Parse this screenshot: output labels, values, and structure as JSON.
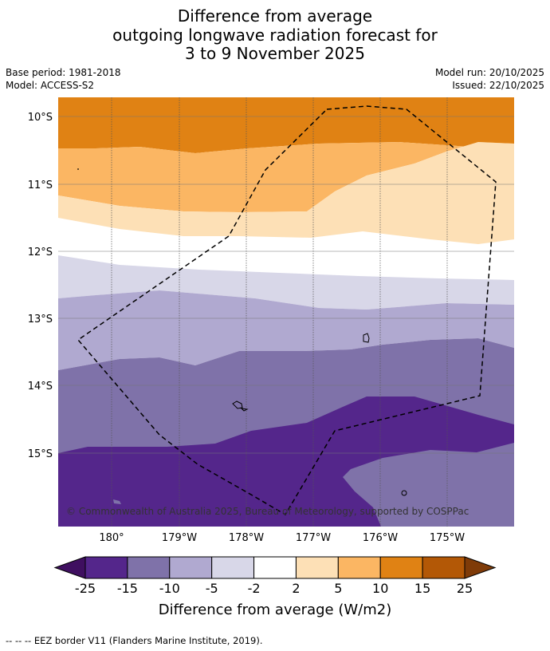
{
  "title": {
    "line1": "Difference from average",
    "line2": "outgoing longwave radiation forecast for",
    "line3": "3 to 9 November 2025"
  },
  "meta": {
    "base_period": "Base period: 1981-2018",
    "model": "Model: ACCESS-S2",
    "model_run": "Model run: 20/10/2025",
    "issued": "Issued: 22/10/2025"
  },
  "map": {
    "lat_labels": [
      "10°S",
      "11°S",
      "12°S",
      "13°S",
      "14°S",
      "15°S"
    ],
    "lon_labels": [
      "180°",
      "179°W",
      "178°W",
      "177°W",
      "176°W",
      "175°W"
    ],
    "copyright": "© Commonwealth of Australia 2025, Bureau of Meteorology, supported by COSPPac"
  },
  "colorbar": {
    "ticks": [
      "-25",
      "-15",
      "-10",
      "-5",
      "-2",
      "2",
      "5",
      "10",
      "15",
      "25"
    ],
    "label": "Difference from average (W/m2)",
    "colors": [
      "#3f0f60",
      "#54268b",
      "#7f72a9",
      "#b0a9d0",
      "#d8d7e8",
      "#ffffff",
      "#fde0b6",
      "#fbb663",
      "#e08214",
      "#b35806",
      "#7f3b08"
    ]
  },
  "legend": {
    "eez": "-- -- -- EEZ border V11 (Flanders Marine Institute, 2019)."
  }
}
